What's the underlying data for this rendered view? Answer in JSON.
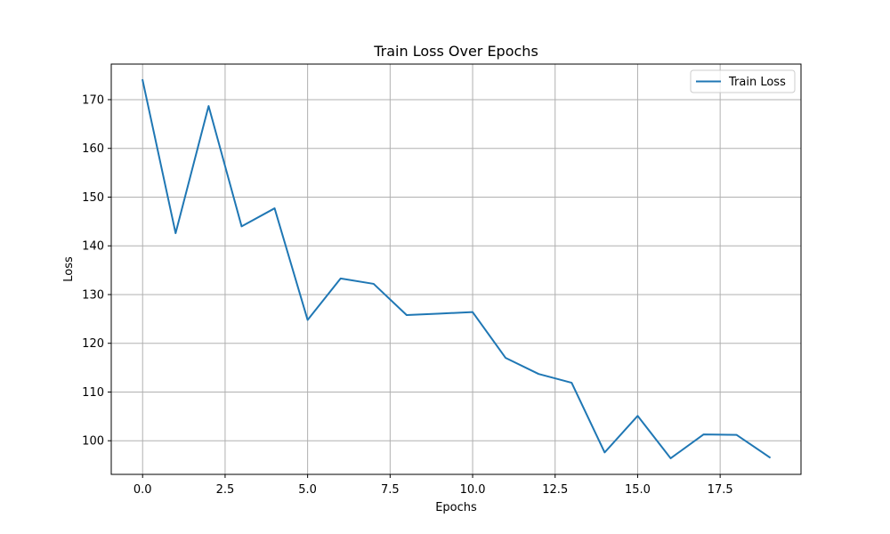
{
  "chart_data": {
    "type": "line",
    "title": "Train Loss Over Epochs",
    "xlabel": "Epochs",
    "ylabel": "Loss",
    "xlim": [
      -0.95,
      19.95
    ],
    "ylim": [
      93.1,
      177.3
    ],
    "xticks": [
      0,
      2.5,
      5,
      7.5,
      10,
      12.5,
      15,
      17.5
    ],
    "xtick_labels": [
      "0.0",
      "2.5",
      "5.0",
      "7.5",
      "10.0",
      "12.5",
      "15.0",
      "17.5"
    ],
    "yticks": [
      100,
      110,
      120,
      130,
      140,
      150,
      160,
      170
    ],
    "ytick_labels": [
      "100",
      "110",
      "120",
      "130",
      "140",
      "150",
      "160",
      "170"
    ],
    "grid": true,
    "legend_position": "top-right",
    "series": [
      {
        "name": "Train Loss",
        "color": "#1f77b4",
        "x": [
          0,
          1,
          2,
          3,
          4,
          5,
          6,
          7,
          8,
          9,
          10,
          11,
          12,
          13,
          14,
          15,
          16,
          17,
          18,
          19
        ],
        "y": [
          174.0,
          142.6,
          168.7,
          144.0,
          147.7,
          124.8,
          133.3,
          132.2,
          125.8,
          126.1,
          126.4,
          117.0,
          113.7,
          111.9,
          97.6,
          105.1,
          96.4,
          101.3,
          101.2,
          96.6
        ]
      }
    ]
  }
}
